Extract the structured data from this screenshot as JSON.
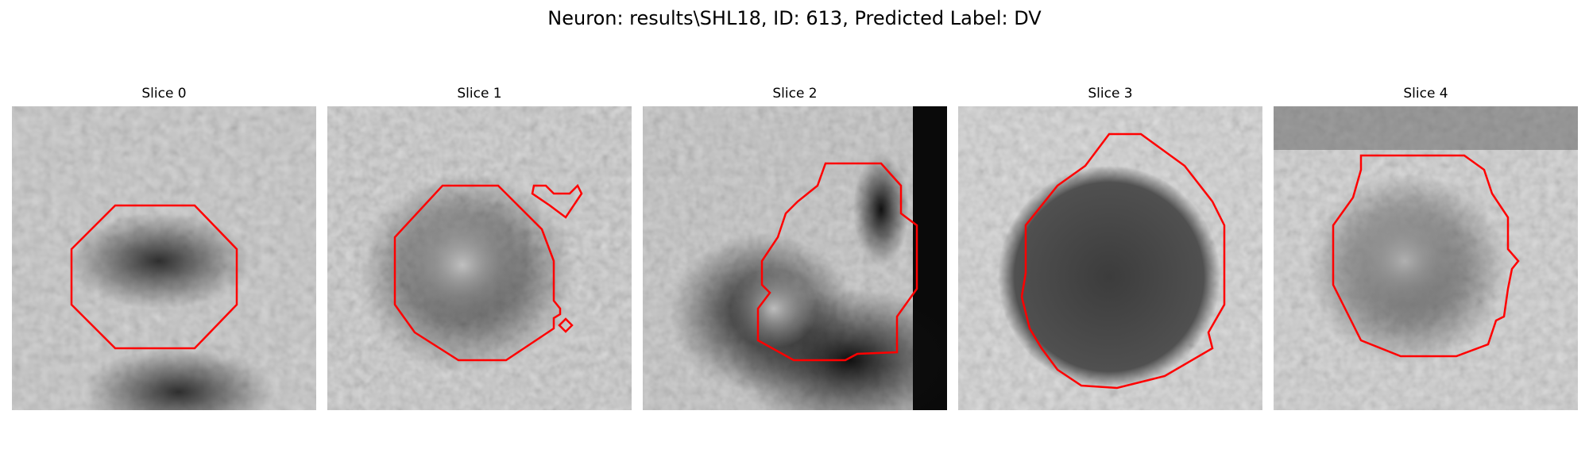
{
  "figure": {
    "title": "Neuron: results\\SHL18, ID: 613, Predicted Label: DV",
    "contour_color": "#ff0000"
  },
  "panels": [
    {
      "title": "Slice 0",
      "background": "light",
      "contour_shape": "octagon",
      "dark_region": "center band"
    },
    {
      "title": "Slice 1",
      "background": "light",
      "contour_shape": "ring with small side blobs",
      "dark_region": "ring"
    },
    {
      "title": "Slice 2",
      "background": "dark right edge",
      "contour_shape": "irregular",
      "dark_region": "right and lower area"
    },
    {
      "title": "Slice 3",
      "background": "light",
      "contour_shape": "large rounded polygon",
      "dark_region": "center"
    },
    {
      "title": "Slice 4",
      "background": "light",
      "contour_shape": "rounded polygon",
      "dark_region": "ring"
    }
  ]
}
